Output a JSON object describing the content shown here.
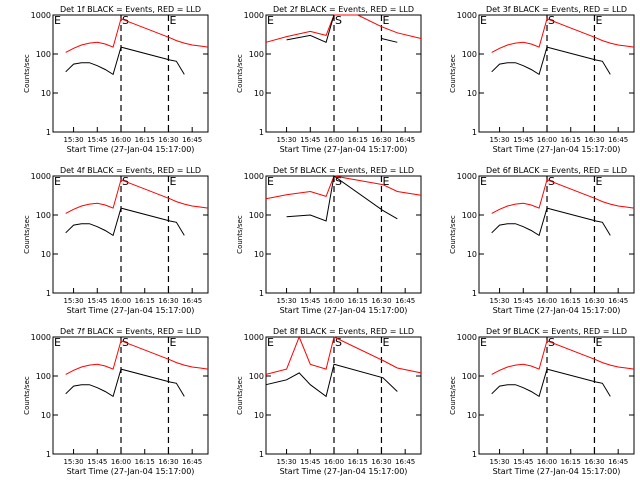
{
  "figure": {
    "xtick_labels": [
      "15:30",
      "15:45",
      "16:00",
      "16:15",
      "16:30",
      "16:45"
    ],
    "ytick_labels": [
      "1",
      "10",
      "100",
      "1000"
    ],
    "ylabel": "Counts/sec",
    "xlabel": "Start Time (27-Jan-04 15:17:00)",
    "colors": {
      "events": "#000000",
      "lld": "#ff0000",
      "axes": "#000000",
      "background": "#ffffff"
    }
  },
  "chart_data": [
    {
      "type": "line",
      "title": "Det 1f BLACK = Events, RED = LLD",
      "xlabel": "Start Time (27-Jan-04 15:17:00)",
      "ylabel": "Counts/sec",
      "xlim": [
        "15:17",
        "16:55"
      ],
      "ylim": [
        1,
        1000
      ],
      "yscale": "log",
      "x": [
        "15:25",
        "15:30",
        "15:35",
        "15:40",
        "15:45",
        "15:50",
        "15:55",
        "16:00",
        "16:31",
        "16:35",
        "16:40",
        "16:45",
        "16:50",
        "16:55"
      ],
      "series": [
        {
          "name": "LLD",
          "color": "#ff0000",
          "values": [
            110,
            140,
            170,
            190,
            200,
            180,
            150,
            800,
            260,
            220,
            190,
            170,
            160,
            150
          ]
        },
        {
          "name": "Events",
          "color": "#000000",
          "values": [
            35,
            55,
            60,
            60,
            50,
            40,
            30,
            150,
            70,
            65,
            30,
            null,
            null,
            null
          ]
        }
      ],
      "markers": [
        {
          "label": "E",
          "x": "15:17",
          "style": "dotted"
        },
        {
          "label": "S",
          "x": "16:00",
          "style": "dashed"
        },
        {
          "label": "E",
          "x": "16:30",
          "style": "dashed"
        }
      ]
    },
    {
      "type": "line",
      "title": "Det 2f BLACK = Events, RED = LLD",
      "xlabel": "Start Time (27-Jan-04 15:17:00)",
      "ylabel": "Counts/sec",
      "xlim": [
        "15:17",
        "16:55"
      ],
      "ylim": [
        1,
        1000
      ],
      "yscale": "log",
      "x": [
        "15:17",
        "15:30",
        "15:45",
        "15:55",
        "16:00",
        "16:15",
        "16:30",
        "16:40",
        "16:55"
      ],
      "series": [
        {
          "name": "LLD",
          "color": "#ff0000",
          "values": [
            200,
            280,
            380,
            300,
            1000,
            1000,
            500,
            350,
            250
          ]
        },
        {
          "name": "Events",
          "color": "#000000",
          "values": [
            null,
            230,
            300,
            200,
            1000,
            null,
            250,
            200,
            null
          ]
        }
      ],
      "markers": [
        {
          "label": "E",
          "x": "15:17",
          "style": "dotted"
        },
        {
          "label": "S",
          "x": "16:00",
          "style": "dashed"
        },
        {
          "label": "E",
          "x": "16:30",
          "style": "dashed"
        }
      ]
    },
    {
      "type": "line",
      "title": "Det 3f BLACK = Events, RED = LLD",
      "xlabel": "Start Time (27-Jan-04 15:17:00)",
      "ylabel": "Counts/sec",
      "xlim": [
        "15:17",
        "16:55"
      ],
      "ylim": [
        1,
        1000
      ],
      "yscale": "log",
      "x": [
        "15:25",
        "15:30",
        "15:35",
        "15:40",
        "15:45",
        "15:50",
        "15:55",
        "16:00",
        "16:31",
        "16:35",
        "16:40",
        "16:45",
        "16:50",
        "16:55"
      ],
      "series": [
        {
          "name": "LLD",
          "color": "#ff0000",
          "values": [
            110,
            140,
            170,
            190,
            200,
            180,
            150,
            800,
            260,
            220,
            190,
            170,
            160,
            150
          ]
        },
        {
          "name": "Events",
          "color": "#000000",
          "values": [
            35,
            55,
            60,
            60,
            50,
            40,
            30,
            150,
            70,
            65,
            30,
            null,
            null,
            null
          ]
        }
      ],
      "markers": [
        {
          "label": "E",
          "x": "15:17",
          "style": "dotted"
        },
        {
          "label": "S",
          "x": "16:00",
          "style": "dashed"
        },
        {
          "label": "E",
          "x": "16:30",
          "style": "dashed"
        }
      ]
    },
    {
      "type": "line",
      "title": "Det 4f BLACK = Events, RED = LLD",
      "xlabel": "Start Time (27-Jan-04 15:17:00)",
      "ylabel": "Counts/sec",
      "xlim": [
        "15:17",
        "16:55"
      ],
      "ylim": [
        1,
        1000
      ],
      "yscale": "log",
      "x": [
        "15:25",
        "15:30",
        "15:35",
        "15:40",
        "15:45",
        "15:50",
        "15:55",
        "16:00",
        "16:31",
        "16:35",
        "16:40",
        "16:45",
        "16:50",
        "16:55"
      ],
      "series": [
        {
          "name": "LLD",
          "color": "#ff0000",
          "values": [
            110,
            140,
            170,
            190,
            200,
            180,
            150,
            800,
            260,
            220,
            190,
            170,
            160,
            150
          ]
        },
        {
          "name": "Events",
          "color": "#000000",
          "values": [
            35,
            55,
            60,
            60,
            50,
            40,
            30,
            150,
            70,
            65,
            30,
            null,
            null,
            null
          ]
        }
      ],
      "markers": [
        {
          "label": "E",
          "x": "15:17",
          "style": "dotted"
        },
        {
          "label": "S",
          "x": "16:00",
          "style": "dashed"
        },
        {
          "label": "E",
          "x": "16:30",
          "style": "dashed"
        }
      ]
    },
    {
      "type": "line",
      "title": "Det 5f BLACK = Events, RED = LLD",
      "xlabel": "Start Time (27-Jan-04 15:17:00)",
      "ylabel": "Counts/sec",
      "xlim": [
        "15:17",
        "16:55"
      ],
      "ylim": [
        1,
        1000
      ],
      "yscale": "log",
      "x": [
        "15:17",
        "15:30",
        "15:45",
        "15:55",
        "16:00",
        "16:31",
        "16:40",
        "16:55"
      ],
      "series": [
        {
          "name": "LLD",
          "color": "#ff0000",
          "values": [
            260,
            330,
            400,
            300,
            1000,
            600,
            400,
            320
          ]
        },
        {
          "name": "Events",
          "color": "#000000",
          "values": [
            null,
            90,
            100,
            70,
            1000,
            130,
            80,
            null
          ]
        }
      ],
      "markers": [
        {
          "label": "E",
          "x": "15:17",
          "style": "dotted"
        },
        {
          "label": "S",
          "x": "16:00",
          "style": "dashed"
        },
        {
          "label": "E",
          "x": "16:30",
          "style": "dashed"
        }
      ]
    },
    {
      "type": "line",
      "title": "Det 6f BLACK = Events, RED = LLD",
      "xlabel": "Start Time (27-Jan-04 15:17:00)",
      "ylabel": "Counts/sec",
      "xlim": [
        "15:17",
        "16:55"
      ],
      "ylim": [
        1,
        1000
      ],
      "yscale": "log",
      "x": [
        "15:25",
        "15:30",
        "15:35",
        "15:40",
        "15:45",
        "15:50",
        "15:55",
        "16:00",
        "16:31",
        "16:35",
        "16:40",
        "16:45",
        "16:50",
        "16:55"
      ],
      "series": [
        {
          "name": "LLD",
          "color": "#ff0000",
          "values": [
            110,
            140,
            170,
            190,
            200,
            180,
            150,
            800,
            260,
            220,
            190,
            170,
            160,
            150
          ]
        },
        {
          "name": "Events",
          "color": "#000000",
          "values": [
            35,
            55,
            60,
            60,
            50,
            40,
            30,
            150,
            70,
            65,
            30,
            null,
            null,
            null
          ]
        }
      ],
      "markers": [
        {
          "label": "E",
          "x": "15:17",
          "style": "dotted"
        },
        {
          "label": "S",
          "x": "16:00",
          "style": "dashed"
        },
        {
          "label": "E",
          "x": "16:30",
          "style": "dashed"
        }
      ]
    },
    {
      "type": "line",
      "title": "Det 7f BLACK = Events, RED = LLD",
      "xlabel": "Start Time (27-Jan-04 15:17:00)",
      "ylabel": "Counts/sec",
      "xlim": [
        "15:17",
        "16:55"
      ],
      "ylim": [
        1,
        1000
      ],
      "yscale": "log",
      "x": [
        "15:25",
        "15:30",
        "15:35",
        "15:40",
        "15:45",
        "15:50",
        "15:55",
        "16:00",
        "16:31",
        "16:35",
        "16:40",
        "16:45",
        "16:50",
        "16:55"
      ],
      "series": [
        {
          "name": "LLD",
          "color": "#ff0000",
          "values": [
            110,
            140,
            170,
            190,
            200,
            180,
            150,
            800,
            260,
            220,
            190,
            170,
            160,
            150
          ]
        },
        {
          "name": "Events",
          "color": "#000000",
          "values": [
            35,
            55,
            60,
            60,
            50,
            40,
            30,
            150,
            70,
            65,
            30,
            null,
            null,
            null
          ]
        }
      ],
      "markers": [
        {
          "label": "E",
          "x": "15:17",
          "style": "dotted"
        },
        {
          "label": "S",
          "x": "16:00",
          "style": "dashed"
        },
        {
          "label": "E",
          "x": "16:30",
          "style": "dashed"
        }
      ]
    },
    {
      "type": "line",
      "title": "Det 8f BLACK = Events, RED = LLD",
      "xlabel": "Start Time (27-Jan-04 15:17:00)",
      "ylabel": "Counts/sec",
      "xlim": [
        "15:17",
        "16:55"
      ],
      "ylim": [
        1,
        1000
      ],
      "yscale": "log",
      "x": [
        "15:17",
        "15:30",
        "15:38",
        "15:45",
        "15:55",
        "16:00",
        "16:31",
        "16:40",
        "16:55"
      ],
      "series": [
        {
          "name": "LLD",
          "color": "#ff0000",
          "values": [
            110,
            150,
            1000,
            200,
            150,
            1000,
            250,
            160,
            120
          ]
        },
        {
          "name": "Events",
          "color": "#000000",
          "values": [
            60,
            80,
            120,
            60,
            30,
            200,
            90,
            40,
            null
          ]
        }
      ],
      "markers": [
        {
          "label": "E",
          "x": "15:17",
          "style": "dotted"
        },
        {
          "label": "S",
          "x": "16:00",
          "style": "dashed"
        },
        {
          "label": "E",
          "x": "16:30",
          "style": "dashed"
        }
      ]
    },
    {
      "type": "line",
      "title": "Det 9f BLACK = Events, RED = LLD",
      "xlabel": "Start Time (27-Jan-04 15:17:00)",
      "ylabel": "Counts/sec",
      "xlim": [
        "15:17",
        "16:55"
      ],
      "ylim": [
        1,
        1000
      ],
      "yscale": "log",
      "x": [
        "15:25",
        "15:30",
        "15:35",
        "15:40",
        "15:45",
        "15:50",
        "15:55",
        "16:00",
        "16:31",
        "16:35",
        "16:40",
        "16:45",
        "16:50",
        "16:55"
      ],
      "series": [
        {
          "name": "LLD",
          "color": "#ff0000",
          "values": [
            110,
            140,
            170,
            190,
            200,
            180,
            150,
            800,
            260,
            220,
            190,
            170,
            160,
            150
          ]
        },
        {
          "name": "Events",
          "color": "#000000",
          "values": [
            35,
            55,
            60,
            60,
            50,
            40,
            30,
            150,
            70,
            65,
            30,
            null,
            null,
            null
          ]
        }
      ],
      "markers": [
        {
          "label": "E",
          "x": "15:17",
          "style": "dotted"
        },
        {
          "label": "S",
          "x": "16:00",
          "style": "dashed"
        },
        {
          "label": "E",
          "x": "16:30",
          "style": "dashed"
        }
      ]
    }
  ]
}
